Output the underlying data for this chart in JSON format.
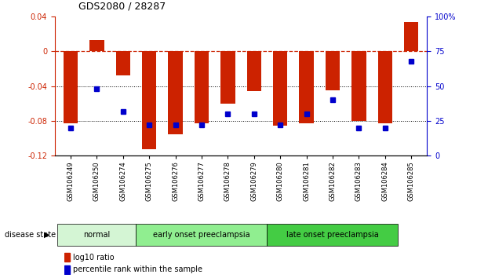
{
  "title": "GDS2080 / 28287",
  "samples": [
    "GSM106249",
    "GSM106250",
    "GSM106274",
    "GSM106275",
    "GSM106276",
    "GSM106277",
    "GSM106278",
    "GSM106279",
    "GSM106280",
    "GSM106281",
    "GSM106282",
    "GSM106283",
    "GSM106284",
    "GSM106285"
  ],
  "log10_ratio": [
    -0.083,
    0.013,
    -0.028,
    -0.113,
    -0.095,
    -0.083,
    -0.06,
    -0.046,
    -0.085,
    -0.083,
    -0.045,
    -0.08,
    -0.083,
    0.034
  ],
  "percentile_rank": [
    20,
    48,
    32,
    22,
    22,
    22,
    30,
    30,
    22,
    30,
    40,
    20,
    20,
    68
  ],
  "groups": [
    {
      "label": "normal",
      "start": 0,
      "end": 3
    },
    {
      "label": "early onset preeclampsia",
      "start": 3,
      "end": 8
    },
    {
      "label": "late onset preeclampsia",
      "start": 8,
      "end": 13
    }
  ],
  "group_colors": [
    "#d4f5d4",
    "#90ee90",
    "#44cc44"
  ],
  "bar_color": "#cc2200",
  "dot_color": "#0000cc",
  "ylim_left": [
    -0.12,
    0.04
  ],
  "ylim_right": [
    0,
    100
  ],
  "zero_line_color": "#cc2200",
  "background_color": "#ffffff",
  "left_yticks": [
    -0.12,
    -0.08,
    -0.04,
    0,
    0.04
  ],
  "left_yticklabels": [
    "-0.12",
    "-0.08",
    "-0.04",
    "0",
    "0.04"
  ],
  "right_yticks": [
    0,
    25,
    50,
    75,
    100
  ],
  "right_yticklabels": [
    "0",
    "25",
    "50",
    "75",
    "100%"
  ]
}
